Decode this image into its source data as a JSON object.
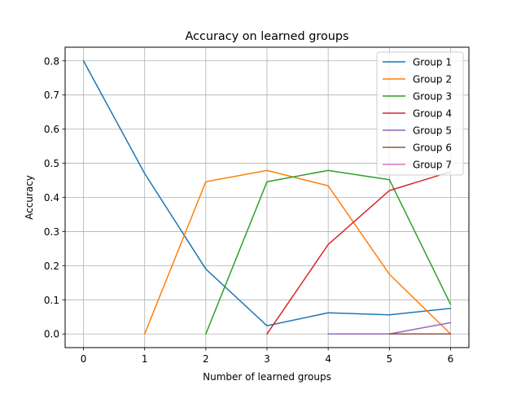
{
  "chart_data": {
    "type": "line",
    "title": "Accuracy on learned groups",
    "xlabel": "Number of learned groups",
    "ylabel": "Accuracy",
    "xlim": [
      -0.3,
      6.3
    ],
    "ylim": [
      -0.04,
      0.84
    ],
    "xticks": [
      0,
      1,
      2,
      3,
      4,
      5,
      6
    ],
    "yticks": [
      0.0,
      0.1,
      0.2,
      0.3,
      0.4,
      0.5,
      0.6,
      0.7,
      0.8
    ],
    "ytick_labels": [
      "0.0",
      "0.1",
      "0.2",
      "0.3",
      "0.4",
      "0.5",
      "0.6",
      "0.7",
      "0.8"
    ],
    "grid": true,
    "legend_position": "top-right",
    "series": [
      {
        "name": "Group 1",
        "color": "#1f77b4",
        "x": [
          0,
          1,
          2,
          3,
          4,
          5,
          6
        ],
        "y": [
          0.8,
          0.47,
          0.19,
          0.024,
          0.062,
          0.056,
          0.075
        ]
      },
      {
        "name": "Group 2",
        "color": "#ff7f0e",
        "x": [
          1,
          2,
          3,
          4,
          5,
          6
        ],
        "y": [
          0.0,
          0.446,
          0.479,
          0.434,
          0.175,
          0.0
        ]
      },
      {
        "name": "Group 3",
        "color": "#2ca02c",
        "x": [
          2,
          3,
          4,
          5,
          6
        ],
        "y": [
          0.0,
          0.446,
          0.479,
          0.452,
          0.087
        ]
      },
      {
        "name": "Group 4",
        "color": "#d62728",
        "x": [
          3,
          4,
          5,
          6
        ],
        "y": [
          0.0,
          0.262,
          0.42,
          0.475
        ]
      },
      {
        "name": "Group 5",
        "color": "#9467bd",
        "x": [
          4,
          5,
          6
        ],
        "y": [
          0.0,
          0.0,
          0.033
        ]
      },
      {
        "name": "Group 6",
        "color": "#8c564b",
        "x": [
          5,
          6
        ],
        "y": [
          0.0,
          0.0
        ]
      },
      {
        "name": "Group 7",
        "color": "#e377c2",
        "x": [
          6
        ],
        "y": [
          0.0
        ]
      }
    ]
  }
}
